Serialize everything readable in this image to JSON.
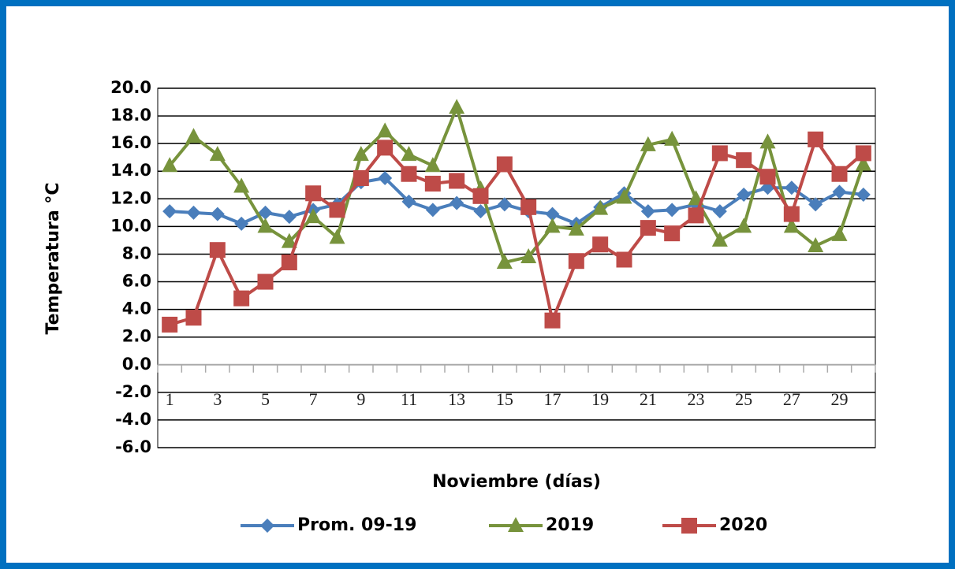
{
  "chart_data": {
    "type": "line",
    "y_label": "Temperatura  °C",
    "x_label": "Noviembre (días)",
    "categories": [
      "1",
      null,
      "3",
      null,
      "5",
      null,
      "7",
      null,
      "9",
      null,
      "11",
      null,
      "13",
      null,
      "15",
      null,
      "17",
      null,
      "19",
      null,
      "21",
      null,
      "23",
      null,
      "25",
      null,
      "27",
      null,
      "29",
      null
    ],
    "ylim": [
      -6,
      20
    ],
    "yticks": [
      {
        "value": -6,
        "label": "-6.0"
      },
      {
        "value": -4,
        "label": "-4.0"
      },
      {
        "value": -2,
        "label": "-2.0"
      },
      {
        "value": 0,
        "label": "0.0"
      },
      {
        "value": 2,
        "label": "2.0"
      },
      {
        "value": 4,
        "label": "4.0"
      },
      {
        "value": 6,
        "label": "6.0"
      },
      {
        "value": 8,
        "label": "8.0"
      },
      {
        "value": 10,
        "label": "10.0"
      },
      {
        "value": 12,
        "label": "12.0"
      },
      {
        "value": 14,
        "label": "14.0"
      },
      {
        "value": 16,
        "label": "16.0"
      },
      {
        "value": 18,
        "label": "18.0"
      },
      {
        "value": 20,
        "label": "20.0"
      }
    ],
    "grid": true,
    "legend": "bottom",
    "series": [
      {
        "name": "Prom. 09-19",
        "color": "#4a7ebb",
        "marker": "diamond",
        "values": [
          11.1,
          11.0,
          10.9,
          10.2,
          11.0,
          10.7,
          11.2,
          11.6,
          13.2,
          13.5,
          11.8,
          11.2,
          11.7,
          11.1,
          11.6,
          11.1,
          10.9,
          10.2,
          11.4,
          12.4,
          11.1,
          11.2,
          11.6,
          11.1,
          12.3,
          12.8,
          12.8,
          11.6,
          12.5,
          12.3
        ]
      },
      {
        "name": "2019",
        "color": "#77933c",
        "marker": "triangle",
        "values": [
          14.4,
          16.5,
          15.2,
          12.9,
          10.0,
          8.9,
          10.7,
          9.2,
          15.2,
          16.9,
          15.2,
          14.4,
          18.6,
          12.7,
          7.4,
          7.8,
          10.0,
          9.8,
          11.3,
          12.1,
          15.9,
          16.3,
          12.0,
          9.0,
          10.0,
          16.1,
          10.0,
          8.6,
          9.4,
          14.5
        ]
      },
      {
        "name": "2020",
        "color": "#be4b48",
        "marker": "square",
        "values": [
          2.9,
          3.4,
          8.3,
          4.8,
          6.0,
          7.4,
          12.4,
          11.2,
          13.5,
          15.7,
          13.8,
          13.1,
          13.3,
          12.2,
          14.5,
          11.4,
          3.2,
          7.5,
          8.7,
          7.6,
          9.9,
          9.5,
          10.8,
          15.3,
          14.8,
          13.6,
          10.9,
          16.3,
          13.8,
          15.3
        ]
      }
    ]
  }
}
